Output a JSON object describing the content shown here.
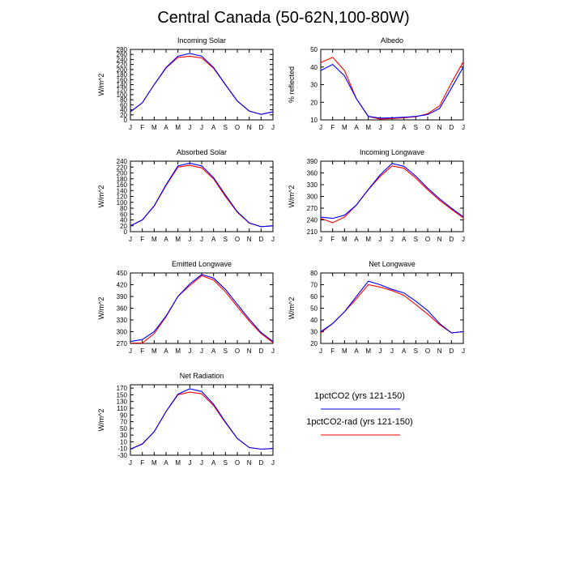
{
  "title": "Central Canada (50-62N,100-80W)",
  "colors": {
    "series_1": "#0000ff",
    "series_2": "#ff0000"
  },
  "legend": {
    "items": [
      {
        "label": "1pctCO2 (yrs 121-150)",
        "color": "#0000ff"
      },
      {
        "label": "1pctCO2-rad (yrs 121-150)",
        "color": "#ff0000"
      }
    ]
  },
  "chart_data": [
    {
      "type": "line",
      "title": "Incoming Solar",
      "ylabel": "W/m^2",
      "categories": [
        "J",
        "F",
        "M",
        "A",
        "M",
        "J",
        "J",
        "A",
        "S",
        "O",
        "N",
        "D",
        "J"
      ],
      "ylim": [
        0,
        280
      ],
      "yticks": [
        0,
        20,
        40,
        60,
        80,
        100,
        120,
        140,
        160,
        180,
        200,
        220,
        240,
        260,
        280
      ],
      "series": [
        {
          "name": "1pctCO2 (yrs 121-150)",
          "color": "#0000ff",
          "values": [
            32,
            68,
            140,
            208,
            253,
            264,
            253,
            208,
            140,
            75,
            35,
            22,
            32
          ]
        },
        {
          "name": "1pctCO2-rad (yrs 121-150)",
          "color": "#ff0000",
          "values": [
            32,
            68,
            140,
            206,
            248,
            253,
            246,
            205,
            140,
            75,
            35,
            22,
            32
          ]
        }
      ]
    },
    {
      "type": "line",
      "title": "Albedo",
      "ylabel": "% reflected",
      "categories": [
        "J",
        "F",
        "M",
        "A",
        "M",
        "J",
        "J",
        "A",
        "S",
        "O",
        "N",
        "D",
        "J"
      ],
      "ylim": [
        10,
        50
      ],
      "yticks": [
        10,
        20,
        30,
        40,
        50
      ],
      "series": [
        {
          "name": "1pctCO2 (yrs 121-150)",
          "color": "#0000ff",
          "values": [
            38,
            41.5,
            35,
            22,
            12,
            11,
            11.2,
            11.5,
            12,
            13,
            16.5,
            28,
            40
          ]
        },
        {
          "name": "1pctCO2-rad (yrs 121-150)",
          "color": "#ff0000",
          "values": [
            42.5,
            45.5,
            38,
            22,
            12,
            10.5,
            10.8,
            11.2,
            11.8,
            13.5,
            18,
            31,
            43
          ]
        }
      ]
    },
    {
      "type": "line",
      "title": "Absorbed Solar",
      "ylabel": "W/m^2",
      "categories": [
        "J",
        "F",
        "M",
        "A",
        "M",
        "J",
        "J",
        "A",
        "S",
        "O",
        "N",
        "D",
        "J"
      ],
      "ylim": [
        0,
        240
      ],
      "yticks": [
        0,
        20,
        40,
        60,
        80,
        100,
        120,
        140,
        160,
        180,
        200,
        220,
        240
      ],
      "series": [
        {
          "name": "1pctCO2 (yrs 121-150)",
          "color": "#0000ff",
          "values": [
            20,
            40,
            88,
            160,
            224,
            233,
            224,
            184,
            125,
            68,
            30,
            17,
            20
          ]
        },
        {
          "name": "1pctCO2-rad (yrs 121-150)",
          "color": "#ff0000",
          "values": [
            20,
            40,
            87,
            157,
            220,
            226,
            217,
            180,
            120,
            66,
            29,
            17,
            20
          ]
        }
      ]
    },
    {
      "type": "line",
      "title": "Incoming Longwave",
      "ylabel": "W/m^2",
      "categories": [
        "J",
        "F",
        "M",
        "A",
        "M",
        "J",
        "J",
        "A",
        "S",
        "O",
        "N",
        "D",
        "J"
      ],
      "ylim": [
        210,
        390
      ],
      "yticks": [
        210,
        240,
        270,
        300,
        330,
        360,
        390
      ],
      "series": [
        {
          "name": "1pctCO2 (yrs 121-150)",
          "color": "#0000ff",
          "values": [
            247,
            244,
            252,
            278,
            318,
            355,
            384,
            377,
            352,
            321,
            294,
            270,
            248
          ]
        },
        {
          "name": "1pctCO2-rad (yrs 121-150)",
          "color": "#ff0000",
          "values": [
            244,
            233,
            247,
            278,
            317,
            351,
            378,
            372,
            347,
            317,
            290,
            267,
            245
          ]
        }
      ]
    },
    {
      "type": "line",
      "title": "Emitted Longwave",
      "ylabel": "W/m^2",
      "categories": [
        "J",
        "F",
        "M",
        "A",
        "M",
        "J",
        "J",
        "A",
        "S",
        "O",
        "N",
        "D",
        "J"
      ],
      "ylim": [
        270,
        450
      ],
      "yticks": [
        270,
        300,
        330,
        360,
        390,
        420,
        450
      ],
      "series": [
        {
          "name": "1pctCO2 (yrs 121-150)",
          "color": "#0000ff",
          "values": [
            275,
            280,
            300,
            340,
            390,
            422,
            446,
            437,
            408,
            370,
            332,
            298,
            275
          ]
        },
        {
          "name": "1pctCO2-rad (yrs 121-150)",
          "color": "#ff0000",
          "values": [
            271,
            271,
            295,
            338,
            390,
            418,
            443,
            432,
            402,
            364,
            327,
            295,
            272
          ]
        }
      ]
    },
    {
      "type": "line",
      "title": "Net Longwave",
      "ylabel": "W/m^2",
      "categories": [
        "J",
        "F",
        "M",
        "A",
        "M",
        "J",
        "J",
        "A",
        "S",
        "O",
        "N",
        "D",
        "J"
      ],
      "ylim": [
        20,
        80
      ],
      "yticks": [
        20,
        30,
        40,
        50,
        60,
        70,
        80
      ],
      "series": [
        {
          "name": "1pctCO2 (yrs 121-150)",
          "color": "#0000ff",
          "values": [
            30,
            37,
            47,
            60,
            73,
            70,
            66,
            63,
            56,
            48,
            37,
            29,
            30
          ]
        },
        {
          "name": "1pctCO2-rad (yrs 121-150)",
          "color": "#ff0000",
          "values": [
            29,
            37,
            47,
            58,
            70,
            68,
            65,
            61,
            53,
            45,
            36,
            29,
            30
          ]
        }
      ]
    },
    {
      "type": "line",
      "title": "Net Radiation",
      "ylabel": "W/m^2",
      "categories": [
        "J",
        "F",
        "M",
        "A",
        "M",
        "J",
        "J",
        "A",
        "S",
        "O",
        "N",
        "D",
        "J"
      ],
      "ylim": [
        -30,
        180
      ],
      "yticks": [
        -30,
        -10,
        10,
        30,
        50,
        70,
        90,
        110,
        130,
        150,
        170
      ],
      "series": [
        {
          "name": "1pctCO2 (yrs 121-150)",
          "color": "#0000ff",
          "values": [
            -12,
            3,
            40,
            100,
            152,
            168,
            160,
            122,
            69,
            20,
            -7,
            -12,
            -10
          ]
        },
        {
          "name": "1pctCO2-rad (yrs 121-150)",
          "color": "#ff0000",
          "values": [
            -12,
            4,
            40,
            100,
            150,
            158,
            153,
            118,
            67,
            20,
            -7,
            -12,
            -10
          ]
        }
      ]
    }
  ]
}
